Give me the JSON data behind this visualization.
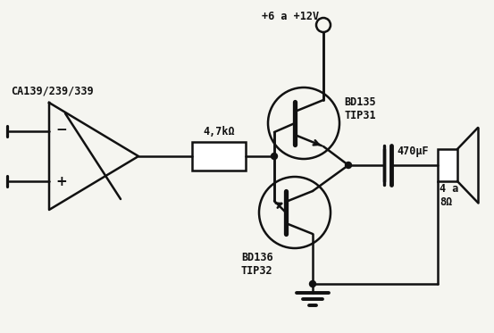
{
  "background_color": "#f5f5f0",
  "line_color": "#111111",
  "fig_width": 5.53,
  "fig_height": 3.73,
  "labels": {
    "ic": "CA139/239/339",
    "supply": "+6 a +12V",
    "resistor": "4,7kΩ",
    "transistor_npn": "BD135\nTIP31",
    "transistor_pnp": "BD136\nTIP32",
    "capacitor": "470μF",
    "speaker": "4 a\n8Ω"
  }
}
